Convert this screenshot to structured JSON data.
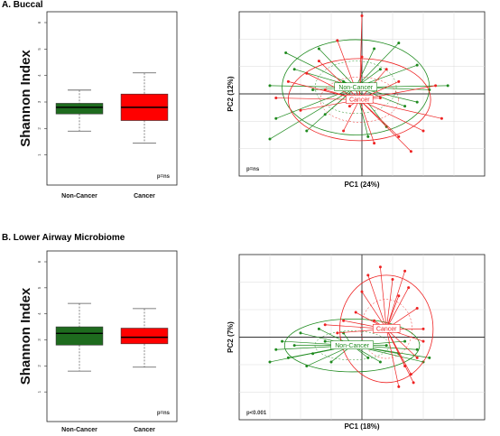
{
  "panels": {
    "a_title": "A. Buccal",
    "b_title": "B. Lower Airway Microbiome"
  },
  "chart_data": [
    {
      "type": "box",
      "panel": "A",
      "ylabel": "Shannon Index",
      "ylim": [
        0,
        6
      ],
      "yticks": [
        1,
        2,
        3,
        4,
        5,
        6
      ],
      "categories": [
        "Non-Cancer",
        "Cancer"
      ],
      "boxes": [
        {
          "name": "Non-Cancer",
          "min": 1.9,
          "q1": 2.55,
          "median": 2.8,
          "q3": 2.95,
          "max": 3.45,
          "color": "#1e6b1e"
        },
        {
          "name": "Cancer",
          "min": 1.45,
          "q1": 2.3,
          "median": 2.8,
          "q3": 3.3,
          "max": 4.1,
          "color": "#ff0000"
        }
      ],
      "annotation": "p=ns"
    },
    {
      "type": "scatter",
      "panel": "A",
      "xlabel": "PC1 (24%)",
      "ylabel": "PC2 (12%)",
      "xlim": [
        -1,
        1
      ],
      "ylim": [
        -1,
        1
      ],
      "grid": true,
      "annotation": "p=ns",
      "groups": [
        {
          "name": "Non-Cancer",
          "color": "#1e8a1e",
          "centroid": [
            -0.05,
            0.08
          ],
          "ellipse": {
            "rx": 0.6,
            "ry": 0.58
          }
        },
        {
          "name": "Cancer",
          "color": "#ee2222",
          "centroid": [
            -0.02,
            -0.07
          ],
          "ellipse": {
            "rx": 0.58,
            "ry": 0.5
          }
        }
      ],
      "points": {
        "Non-Cancer": [
          [
            -0.62,
            0.5
          ],
          [
            -0.35,
            0.55
          ],
          [
            -0.55,
            0.3
          ],
          [
            -0.75,
            0.1
          ],
          [
            -0.7,
            -0.3
          ],
          [
            -0.75,
            -0.55
          ],
          [
            -0.45,
            -0.45
          ],
          [
            -0.3,
            -0.25
          ],
          [
            0.1,
            0.55
          ],
          [
            0.15,
            0.3
          ],
          [
            0.3,
            0.62
          ],
          [
            0.45,
            0.35
          ],
          [
            0.7,
            0.1
          ],
          [
            0.55,
            0.05
          ],
          [
            0.35,
            -0.15
          ],
          [
            0.2,
            -0.4
          ],
          [
            0.05,
            -0.52
          ],
          [
            -0.15,
            0.15
          ],
          [
            -0.4,
            0.05
          ],
          [
            0.45,
            -0.1
          ]
        ],
        "Cancer": [
          [
            0.0,
            0.95
          ],
          [
            -0.2,
            0.65
          ],
          [
            -0.45,
            0.25
          ],
          [
            -0.7,
            -0.05
          ],
          [
            -0.3,
            0.05
          ],
          [
            -0.5,
            -0.2
          ],
          [
            -0.15,
            -0.45
          ],
          [
            0.1,
            -0.6
          ],
          [
            0.3,
            -0.52
          ],
          [
            0.5,
            -0.45
          ],
          [
            0.65,
            -0.3
          ],
          [
            0.6,
            0.1
          ],
          [
            0.3,
            0.15
          ],
          [
            0.15,
            -0.05
          ],
          [
            -0.1,
            -0.15
          ],
          [
            0.4,
            -0.7
          ],
          [
            -0.35,
            0.4
          ],
          [
            0.0,
            0.45
          ],
          [
            0.2,
            0.3
          ],
          [
            -0.6,
            0.15
          ]
        ]
      }
    },
    {
      "type": "box",
      "panel": "B",
      "ylabel": "Shannon Index",
      "ylim": [
        0,
        6
      ],
      "yticks": [
        1,
        2,
        3,
        4,
        5,
        6
      ],
      "categories": [
        "Non-Cancer",
        "Cancer"
      ],
      "boxes": [
        {
          "name": "Non-Cancer",
          "min": 1.8,
          "q1": 2.8,
          "median": 3.25,
          "q3": 3.5,
          "max": 4.4,
          "color": "#1e6b1e"
        },
        {
          "name": "Cancer",
          "min": 1.95,
          "q1": 2.85,
          "median": 3.1,
          "q3": 3.45,
          "max": 4.2,
          "color": "#ff0000"
        }
      ],
      "annotation": "p=ns"
    },
    {
      "type": "scatter",
      "panel": "B",
      "xlabel": "PC1 (18%)",
      "ylabel": "PC2 (7%)",
      "xlim": [
        -1,
        1
      ],
      "ylim": [
        -1,
        1
      ],
      "grid": true,
      "annotation": "p<0.001",
      "groups": [
        {
          "name": "Non-Cancer",
          "color": "#1e8a1e",
          "centroid": [
            -0.08,
            -0.1
          ],
          "ellipse": {
            "rx": 0.55,
            "ry": 0.32
          }
        },
        {
          "name": "Cancer",
          "color": "#ee2222",
          "centroid": [
            0.2,
            0.1
          ],
          "ellipse": {
            "rx": 0.38,
            "ry": 0.65
          }
        }
      ],
      "points": {
        "Non-Cancer": [
          [
            -0.7,
            -0.15
          ],
          [
            -0.75,
            -0.3
          ],
          [
            -0.6,
            -0.25
          ],
          [
            -0.55,
            -0.1
          ],
          [
            -0.5,
            0.05
          ],
          [
            -0.4,
            -0.2
          ],
          [
            -0.35,
            0.1
          ],
          [
            -0.3,
            -0.05
          ],
          [
            -0.25,
            -0.3
          ],
          [
            -0.15,
            0.05
          ],
          [
            0.05,
            -0.25
          ],
          [
            0.15,
            -0.3
          ],
          [
            0.3,
            -0.2
          ],
          [
            0.45,
            -0.15
          ],
          [
            0.5,
            -0.3
          ],
          [
            0.35,
            -0.05
          ],
          [
            -0.65,
            -0.05
          ],
          [
            -0.45,
            -0.35
          ],
          [
            0.2,
            -0.1
          ],
          [
            0.55,
            -0.25
          ]
        ],
        "Cancer": [
          [
            0.05,
            0.75
          ],
          [
            0.15,
            0.85
          ],
          [
            0.25,
            0.7
          ],
          [
            0.35,
            0.8
          ],
          [
            0.0,
            0.55
          ],
          [
            0.3,
            0.5
          ],
          [
            -0.05,
            0.3
          ],
          [
            0.45,
            0.35
          ],
          [
            0.5,
            0.1
          ],
          [
            0.45,
            -0.25
          ],
          [
            0.4,
            -0.45
          ],
          [
            0.3,
            -0.6
          ],
          [
            0.35,
            -0.35
          ],
          [
            0.5,
            -0.05
          ],
          [
            -0.2,
            0.05
          ],
          [
            -0.15,
            0.2
          ],
          [
            0.1,
            0.2
          ],
          [
            0.38,
            0.6
          ],
          [
            0.42,
            -0.55
          ],
          [
            -0.3,
            0.15
          ]
        ]
      }
    }
  ]
}
